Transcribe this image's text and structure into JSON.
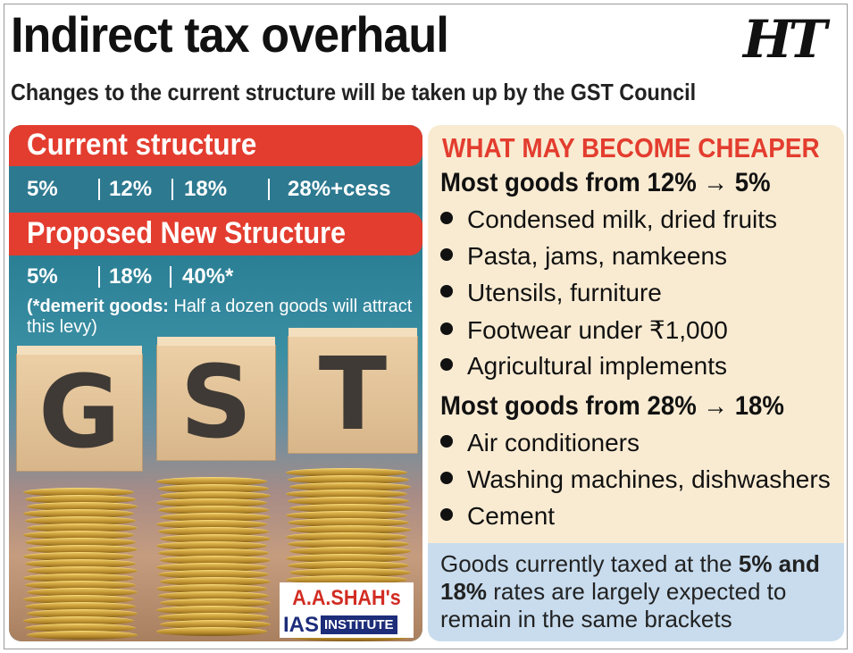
{
  "header": {
    "title": "Indirect tax overhaul",
    "subtitle": "Changes to the current structure will be taken up by the GST Council",
    "logo": "HT"
  },
  "current": {
    "heading": "Current structure",
    "rates": [
      "5%",
      "12%",
      "18%",
      "28%+cess"
    ]
  },
  "proposed": {
    "heading": "Proposed New Structure",
    "rates": [
      "5%",
      "18%",
      "40%*"
    ],
    "footnote_bold": "(*demerit goods:",
    "footnote_rest": " Half a dozen goods will attract this levy)"
  },
  "image": {
    "cube_letters": [
      "G",
      "S",
      "T"
    ]
  },
  "brand": {
    "line1": "A.A.SHAH's",
    "ias": "IAS",
    "institute": "INSTITUTE"
  },
  "cheaper": {
    "title": "WHAT MAY BECOME CHEAPER",
    "group1": {
      "heading": "Most goods from 12% → 5%",
      "items": [
        "Condensed milk, dried fruits",
        "Pasta, jams, namkeens",
        "Utensils, furniture",
        "Footwear under ₹1,000",
        "Agricultural implements"
      ]
    },
    "group2": {
      "heading": "Most goods from 28% → 18%",
      "items": [
        "Air conditioners",
        "Washing machines, dishwashers",
        "Cement"
      ]
    }
  },
  "note": {
    "pre": "Goods currently taxed at the ",
    "bold": "5% and 18%",
    "post": " rates are largely expected to remain in the same brackets"
  },
  "colors": {
    "red": "#e33d2f",
    "teal": "#2d7990",
    "cream": "#f9ebd2",
    "light_blue": "#c8dcee"
  }
}
